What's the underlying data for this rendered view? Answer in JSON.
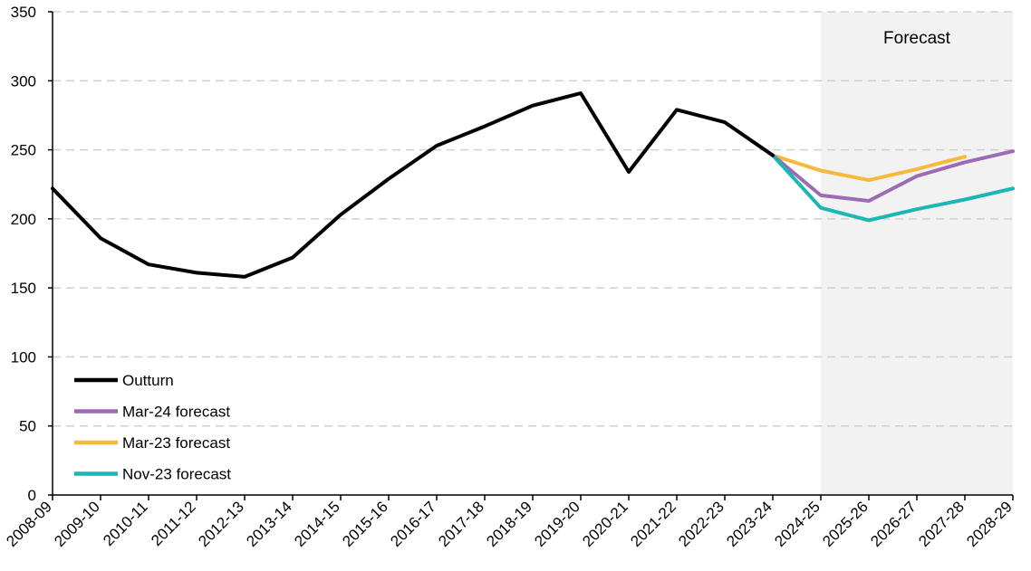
{
  "chart_data": {
    "type": "line",
    "title": "",
    "xlabel": "",
    "ylabel": "",
    "ylim": [
      0,
      350
    ],
    "yticks": [
      "0",
      "50",
      "100",
      "150",
      "200",
      "250",
      "300",
      "350"
    ],
    "grid": "horizontal dashed",
    "legend_position": "bottom-left",
    "categories": [
      "2008-09",
      "2009-10",
      "2010-11",
      "2011-12",
      "2012-13",
      "2013-14",
      "2014-15",
      "2015-16",
      "2016-17",
      "2017-18",
      "2018-19",
      "2019-20",
      "2020-21",
      "2021-22",
      "2022-23",
      "2023-24",
      "2024-25",
      "2025-26",
      "2026-27",
      "2027-28",
      "2028-29"
    ],
    "forecast_region": {
      "label": "Forecast",
      "start": "2024-25",
      "end": "2028-29"
    },
    "series": [
      {
        "name": "Outturn",
        "color": "#000000",
        "values": [
          222,
          186,
          167,
          161,
          158,
          172,
          203,
          229,
          253,
          267,
          282,
          291,
          234,
          279,
          270,
          246,
          null,
          null,
          null,
          null,
          null
        ]
      },
      {
        "name": "Mar-24 forecast",
        "color": "#9b6bb3",
        "values": [
          null,
          null,
          null,
          null,
          null,
          null,
          null,
          null,
          null,
          null,
          null,
          null,
          null,
          null,
          null,
          246,
          217,
          213,
          231,
          241,
          249
        ]
      },
      {
        "name": "Mar-23 forecast",
        "color": "#f6b93b",
        "values": [
          null,
          null,
          null,
          null,
          null,
          null,
          null,
          null,
          null,
          null,
          null,
          null,
          null,
          null,
          null,
          246,
          235,
          228,
          236,
          245,
          null
        ]
      },
      {
        "name": "Nov-23 forecast",
        "color": "#1ab7b5",
        "values": [
          null,
          null,
          null,
          null,
          null,
          null,
          null,
          null,
          null,
          null,
          null,
          null,
          null,
          null,
          null,
          246,
          208,
          199,
          207,
          214,
          222
        ]
      }
    ]
  }
}
